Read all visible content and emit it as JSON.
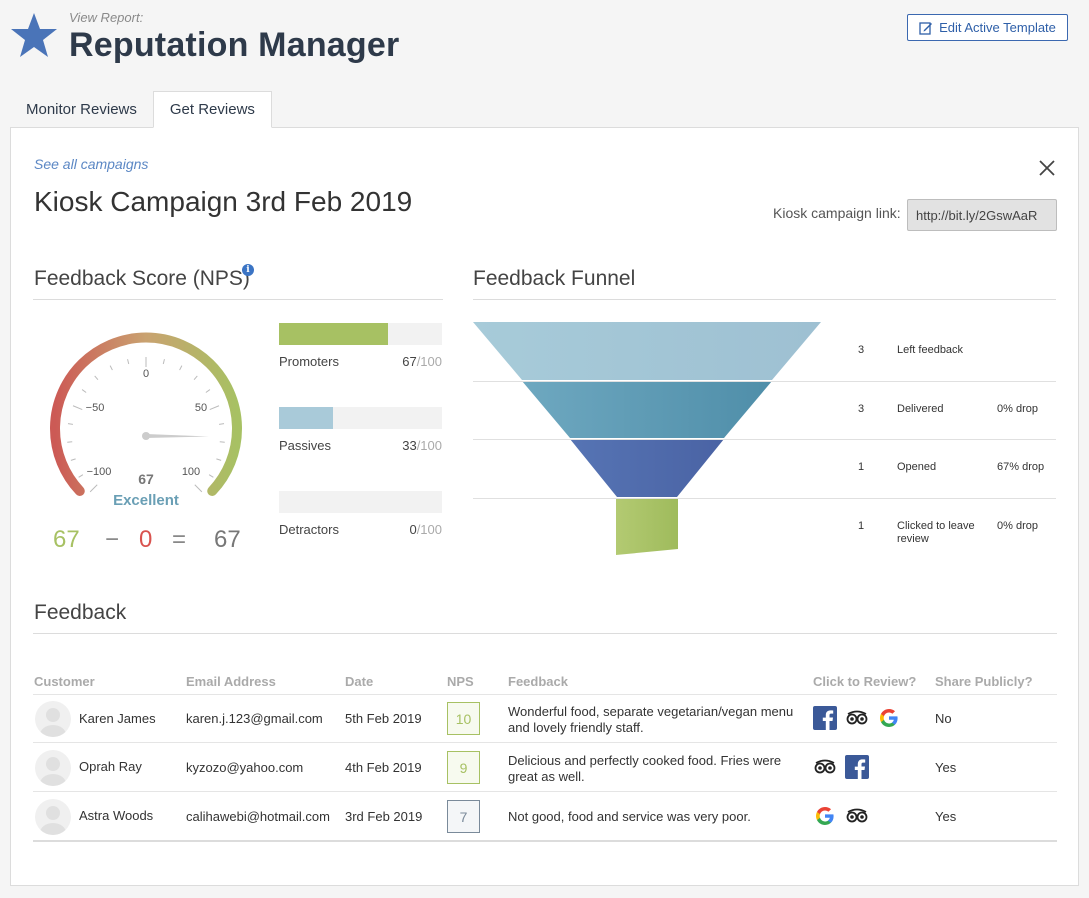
{
  "header": {
    "view_report": "View Report:",
    "title": "Reputation Manager",
    "edit_template": "Edit Active Template"
  },
  "tabs": [
    {
      "label": "Monitor Reviews",
      "active": false
    },
    {
      "label": "Get Reviews",
      "active": true
    }
  ],
  "campaign": {
    "see_all": "See all campaigns",
    "title": "Kiosk Campaign 3rd Feb 2019",
    "link_label": "Kiosk campaign link:",
    "link_value": "http://bit.ly/2GswAaR"
  },
  "nps": {
    "section_title": "Feedback Score (NPS)",
    "gauge_value": "67",
    "gauge_ticks": {
      "t0": "0",
      "tm50": "−50",
      "t50": "50",
      "tm100": "−100",
      "t100": "100"
    },
    "gauge_score": 67,
    "rating": "Excellent",
    "equation": {
      "promoters": "67",
      "minus": "−",
      "detractors": "0",
      "equals": "=",
      "result": "67"
    },
    "bars": [
      {
        "label": "Promoters",
        "score": "67",
        "max": "/100",
        "value": 67,
        "color": "#a7c163"
      },
      {
        "label": "Passives",
        "score": "33",
        "max": "/100",
        "value": 33,
        "color": "#a9cad9"
      },
      {
        "label": "Detractors",
        "score": "0",
        "max": "/100",
        "value": 0,
        "color": "#d9534f"
      }
    ]
  },
  "funnel": {
    "section_title": "Feedback Funnel",
    "stages": [
      {
        "count": "3",
        "label": "Left feedback",
        "drop": "",
        "color": "#a6c8d8"
      },
      {
        "count": "3",
        "label": "Delivered",
        "drop": "0% drop",
        "color": "#5a9bb5"
      },
      {
        "count": "1",
        "label": "Opened",
        "drop": "67% drop",
        "color": "#4a67a8"
      },
      {
        "count": "1",
        "label": "Clicked to leave review",
        "drop": "0% drop",
        "color": "#a7c163"
      }
    ]
  },
  "feedback": {
    "section_title": "Feedback",
    "columns": [
      "Customer",
      "Email Address",
      "Date",
      "NPS",
      "Feedback",
      "Click to Review?",
      "Share Publicly?"
    ],
    "rows": [
      {
        "name": "Karen James",
        "email": "karen.j.123@gmail.com",
        "date": "5th Feb 2019",
        "nps": "10",
        "nps_color": "#a7c163",
        "feedback": "Wonderful food, separate vegetarian/vegan menu and lovely friendly staff.",
        "review_icons": [
          "facebook-icon",
          "tripadvisor-icon",
          "google-icon"
        ],
        "share": "No"
      },
      {
        "name": "Oprah Ray",
        "email": "kyzozo@yahoo.com",
        "date": "4th Feb 2019",
        "nps": "9",
        "nps_color": "#a7c163",
        "feedback": "Delicious and perfectly cooked food. Fries were great as well.",
        "review_icons": [
          "tripadvisor-icon",
          "facebook-icon"
        ],
        "share": "Yes"
      },
      {
        "name": "Astra Woods",
        "email": "calihawebi@hotmail.com",
        "date": "3rd Feb 2019",
        "nps": "7",
        "nps_color": "#7a8a9a",
        "feedback": "Not good, food and service was very poor.",
        "review_icons": [
          "google-icon",
          "tripadvisor-icon"
        ],
        "share": "Yes"
      }
    ]
  },
  "colors": {
    "accent": "#3b68b0",
    "star": "#4a74b8",
    "promoter": "#a7c163",
    "detractor": "#d9534f",
    "passive": "#a9cad9"
  }
}
